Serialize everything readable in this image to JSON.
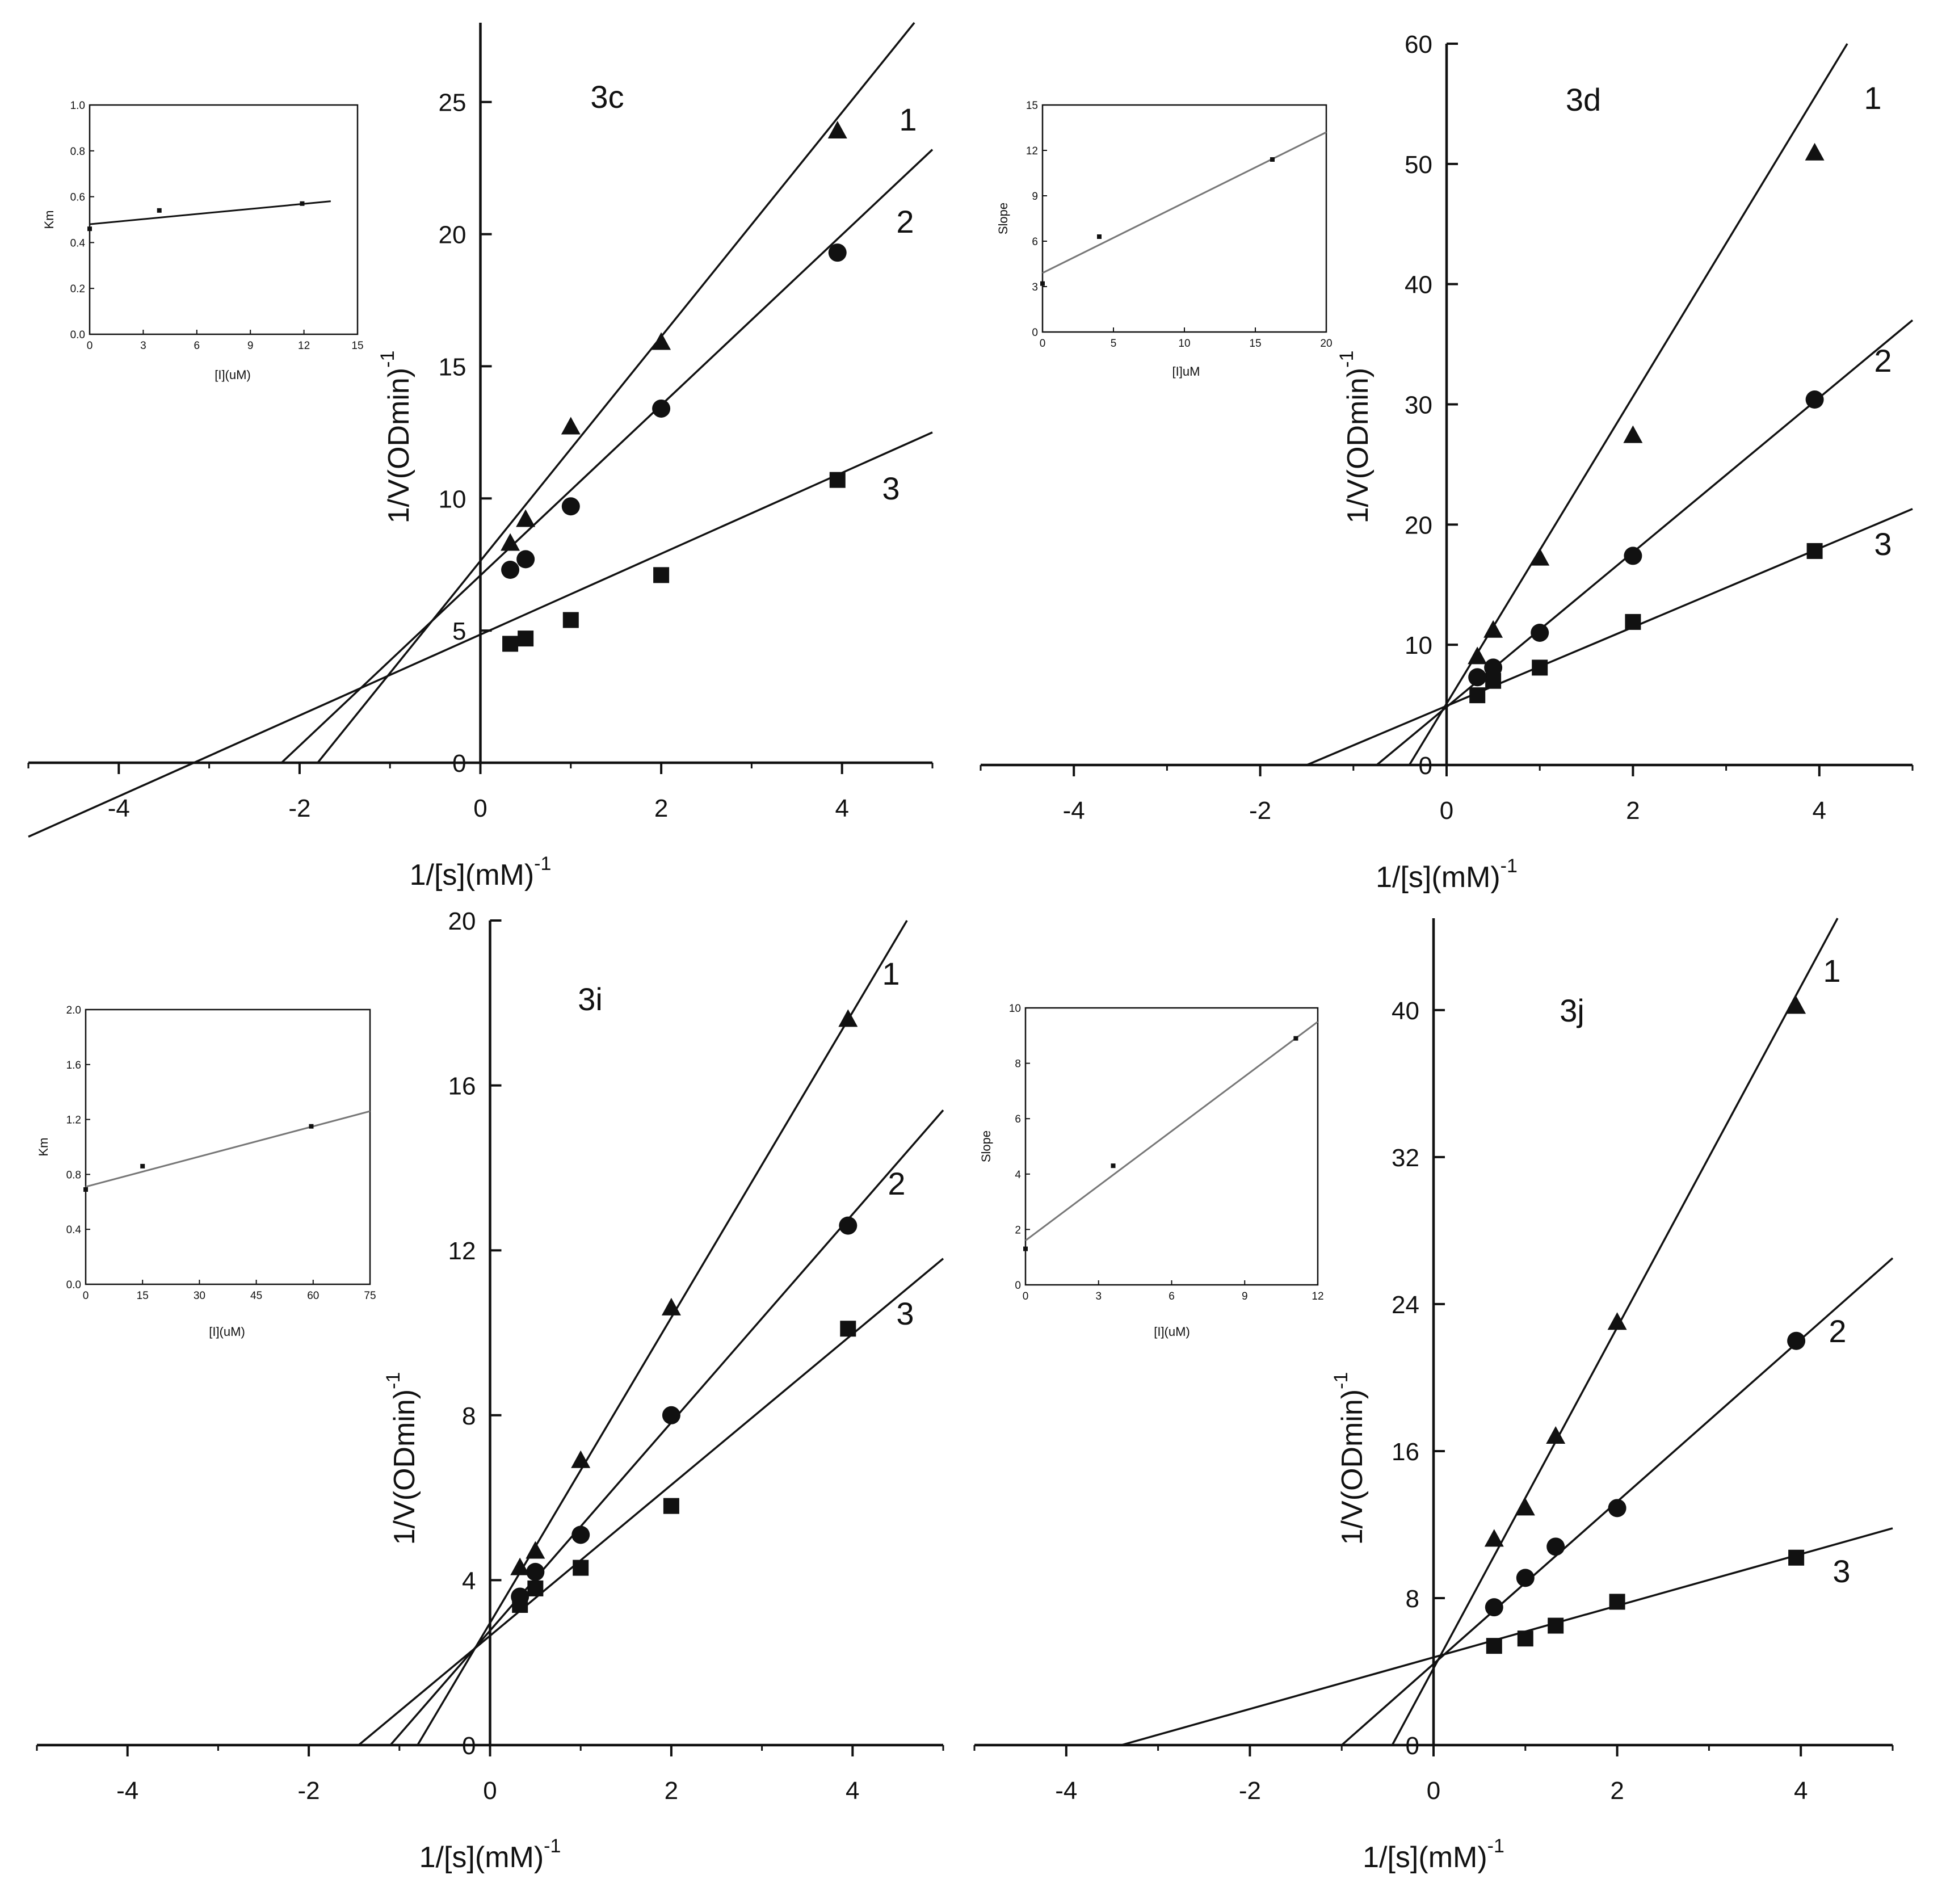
{
  "colors": {
    "ink": "#111111",
    "inset_line": "#777777",
    "background": "#ffffff"
  },
  "chart_data": [
    {
      "id": "3c",
      "type": "scatter",
      "panel_label": "3c",
      "xlabel": "1/[s](mM)",
      "xlabel_sup": "-1",
      "ylabel": "1/V(ODmin)",
      "ylabel_sup": "-1",
      "xlim": [
        -5,
        5
      ],
      "ylim": [
        0,
        28
      ],
      "xticks": [
        -4,
        -2,
        0,
        2,
        4
      ],
      "yticks": [
        0,
        5,
        10,
        15,
        20,
        25
      ],
      "grid": false,
      "series": [
        {
          "name": "1",
          "marker": "square",
          "x": [
            0.33,
            0.5,
            1.0,
            2.0,
            3.95
          ],
          "y": [
            4.5,
            4.7,
            5.4,
            7.1,
            10.7
          ],
          "line": [
            [
              -5,
              -2.8
            ],
            [
              5,
              12.5
            ]
          ]
        },
        {
          "name": "2",
          "marker": "circle",
          "x": [
            0.33,
            0.5,
            1.0,
            2.0,
            3.95
          ],
          "y": [
            7.3,
            7.7,
            9.7,
            13.4,
            19.3
          ],
          "line": [
            [
              -2.2,
              0
            ],
            [
              5,
              23.2
            ]
          ]
        },
        {
          "name": "3",
          "marker": "triangle",
          "x": [
            0.33,
            0.5,
            1.0,
            2.0,
            3.95
          ],
          "y": [
            8.3,
            9.2,
            12.7,
            15.9,
            23.9
          ],
          "line": [
            [
              -1.8,
              0
            ],
            [
              4.8,
              28
            ]
          ]
        }
      ],
      "inset": {
        "xlabel": "[I](uM)",
        "ylabel": "Km",
        "xlim": [
          0,
          15
        ],
        "ylim": [
          0,
          1.0
        ],
        "xticks": [
          "0",
          "3",
          "6",
          "9",
          "12",
          "15"
        ],
        "yticks": [
          "0.0",
          "0.2",
          "0.4",
          "0.6",
          "0.8",
          "1.0"
        ],
        "points": [
          [
            0,
            0.46
          ],
          [
            3.9,
            0.54
          ],
          [
            11.9,
            0.57
          ]
        ],
        "line": [
          [
            0,
            0.48
          ],
          [
            13.5,
            0.58
          ]
        ]
      }
    },
    {
      "id": "3d",
      "type": "scatter",
      "panel_label": "3d",
      "xlabel": "1/[s](mM)",
      "xlabel_sup": "-1",
      "ylabel": "1/V(ODmin)",
      "ylabel_sup": "-1",
      "xlim": [
        -5,
        5
      ],
      "ylim": [
        0,
        60
      ],
      "xticks": [
        -4,
        -2,
        0,
        2,
        4
      ],
      "yticks": [
        0,
        10,
        20,
        30,
        40,
        50,
        60
      ],
      "grid": false,
      "series": [
        {
          "name": "1",
          "marker": "square",
          "x": [
            0.33,
            0.5,
            1.0,
            2.0,
            3.95
          ],
          "y": [
            5.8,
            7.0,
            8.1,
            11.9,
            17.8
          ],
          "line": [
            [
              -1.5,
              0
            ],
            [
              5,
              21.3
            ]
          ]
        },
        {
          "name": "2",
          "marker": "circle",
          "x": [
            0.33,
            0.5,
            1.0,
            2.0,
            3.95
          ],
          "y": [
            7.3,
            8.1,
            11.0,
            17.4,
            30.4
          ],
          "line": [
            [
              -0.75,
              0
            ],
            [
              5,
              37.0
            ]
          ]
        },
        {
          "name": "3",
          "marker": "triangle",
          "x": [
            0.33,
            0.5,
            1.0,
            2.0,
            3.95
          ],
          "y": [
            9.0,
            11.2,
            17.2,
            27.4,
            50.9
          ],
          "line": [
            [
              -0.4,
              0
            ],
            [
              4.3,
              60
            ]
          ]
        }
      ],
      "inset": {
        "xlabel": "[I]uM",
        "ylabel": "Slope",
        "xlim": [
          0,
          20
        ],
        "ylim": [
          0,
          15
        ],
        "xticks": [
          "0",
          "5",
          "10",
          "15",
          "20"
        ],
        "yticks": [
          "0",
          "3",
          "6",
          "9",
          "12",
          "15"
        ],
        "points": [
          [
            0,
            3.2
          ],
          [
            4.0,
            6.3
          ],
          [
            16.2,
            11.4
          ]
        ],
        "line": [
          [
            0,
            3.9
          ],
          [
            20,
            13.2
          ]
        ]
      }
    },
    {
      "id": "3i",
      "type": "scatter",
      "panel_label": "3i",
      "xlabel": "1/[s](mM)",
      "xlabel_sup": "-1",
      "ylabel": "1/V(ODmin)",
      "ylabel_sup": "-1",
      "xlim": [
        -5,
        5
      ],
      "ylim": [
        0,
        20
      ],
      "xticks": [
        -4,
        -2,
        0,
        2,
        4
      ],
      "yticks": [
        0,
        4,
        8,
        12,
        16,
        20
      ],
      "grid": false,
      "series": [
        {
          "name": "1",
          "marker": "square",
          "x": [
            0.33,
            0.5,
            1.0,
            2.0,
            3.95
          ],
          "y": [
            3.4,
            3.8,
            4.3,
            5.8,
            10.1
          ],
          "line": [
            [
              -1.45,
              0
            ],
            [
              5,
              11.8
            ]
          ]
        },
        {
          "name": "2",
          "marker": "circle",
          "x": [
            0.33,
            0.5,
            1.0,
            2.0,
            3.95
          ],
          "y": [
            3.6,
            4.2,
            5.1,
            8.0,
            12.6
          ],
          "line": [
            [
              -1.1,
              0
            ],
            [
              5,
              15.4
            ]
          ]
        },
        {
          "name": "3",
          "marker": "triangle",
          "x": [
            0.33,
            0.5,
            1.0,
            2.0,
            3.95
          ],
          "y": [
            4.3,
            4.7,
            6.9,
            10.6,
            17.6
          ],
          "line": [
            [
              -0.8,
              0
            ],
            [
              4.6,
              20
            ]
          ]
        }
      ],
      "inset": {
        "xlabel": "[I](uM)",
        "ylabel": "Km",
        "xlim": [
          0,
          75
        ],
        "ylim": [
          0,
          2.0
        ],
        "xticks": [
          "0",
          "15",
          "30",
          "45",
          "60",
          "75"
        ],
        "yticks": [
          "0.0",
          "0.4",
          "0.8",
          "1.2",
          "1.6",
          "2.0"
        ],
        "points": [
          [
            0,
            0.69
          ],
          [
            15,
            0.86
          ],
          [
            59.5,
            1.15
          ]
        ],
        "line": [
          [
            0,
            0.71
          ],
          [
            75,
            1.26
          ]
        ]
      }
    },
    {
      "id": "3j",
      "type": "scatter",
      "panel_label": "3j",
      "xlabel": "1/[s](mM)",
      "xlabel_sup": "-1",
      "ylabel": "1/V(ODmin)",
      "ylabel_sup": "-1",
      "xlim": [
        -5,
        5
      ],
      "ylim": [
        0,
        45
      ],
      "xticks": [
        -4,
        -2,
        0,
        2,
        4
      ],
      "yticks": [
        0,
        8,
        16,
        24,
        32,
        40
      ],
      "grid": false,
      "series": [
        {
          "name": "1",
          "marker": "square",
          "x": [
            0.66,
            1.0,
            1.33,
            2.0,
            3.95
          ],
          "y": [
            5.4,
            5.8,
            6.5,
            7.8,
            10.2
          ],
          "line": [
            [
              -3.4,
              0
            ],
            [
              5,
              11.8
            ]
          ]
        },
        {
          "name": "2",
          "marker": "circle",
          "x": [
            0.66,
            1.0,
            1.33,
            2.0,
            3.95
          ],
          "y": [
            7.5,
            9.1,
            10.8,
            12.9,
            22.0
          ],
          "line": [
            [
              -1.0,
              0
            ],
            [
              5,
              26.5
            ]
          ]
        },
        {
          "name": "3",
          "marker": "triangle",
          "x": [
            0.66,
            1.0,
            1.33,
            2.0,
            3.95
          ],
          "y": [
            11.2,
            12.9,
            16.8,
            23.0,
            40.2
          ],
          "line": [
            [
              -0.45,
              0
            ],
            [
              4.4,
              45
            ]
          ]
        }
      ],
      "inset": {
        "xlabel": "[I](uM)",
        "ylabel": "Slope",
        "xlim": [
          0,
          12
        ],
        "ylim": [
          0,
          10
        ],
        "xticks": [
          "0",
          "3",
          "6",
          "9",
          "12"
        ],
        "yticks": [
          "0",
          "2",
          "4",
          "6",
          "8",
          "10"
        ],
        "points": [
          [
            0,
            1.3
          ],
          [
            3.6,
            4.3
          ],
          [
            11.1,
            8.9
          ]
        ],
        "line": [
          [
            0,
            1.6
          ],
          [
            12,
            9.5
          ]
        ]
      }
    }
  ]
}
